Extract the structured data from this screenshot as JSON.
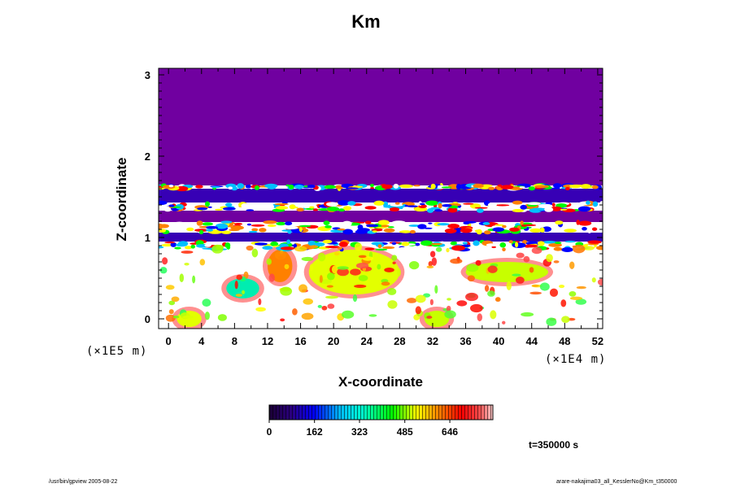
{
  "title": "Km",
  "footer": {
    "left": "/usr/bin/gpview 2005-08-22",
    "right": "arare-nakajima03_all_KesslerNo@Km_t350000"
  },
  "time_label": "t=350000 s",
  "chart_data": {
    "type": "heatmap",
    "title": "Km",
    "xlabel": "X-coordinate",
    "ylabel": "Z-coordinate",
    "x_scale_label": "(×1E4 m)",
    "y_scale_label": "(×1E5 m)",
    "xlim": [
      -1.2,
      52.6
    ],
    "ylim": [
      -0.12,
      3.08
    ],
    "x_ticks": [
      "0",
      "4",
      "8",
      "12",
      "16",
      "20",
      "24",
      "28",
      "32",
      "36",
      "40",
      "44",
      "48",
      "52"
    ],
    "y_ticks": [
      "0",
      "1",
      "2",
      "3"
    ],
    "grid": false,
    "colorbar": {
      "min": 0,
      "max": 800,
      "tick_values": [
        0,
        162,
        323,
        485,
        646
      ],
      "tick_labels": [
        "0",
        "162",
        "323",
        "485",
        "646"
      ]
    },
    "field_regions": [
      {
        "x": [
          -1.2,
          52.6
        ],
        "z": [
          1.64,
          3.08
        ],
        "value": 0,
        "shape": "rect"
      },
      {
        "x": [
          -1.2,
          52.6
        ],
        "z": [
          1.43,
          1.6
        ],
        "value": 40,
        "shape": "rect"
      },
      {
        "x": [
          -1.2,
          52.6
        ],
        "z": [
          1.19,
          1.33
        ],
        "value": 0,
        "shape": "rect"
      },
      {
        "x": [
          -1.2,
          52.6
        ],
        "z": [
          0.95,
          1.06
        ],
        "value": 40,
        "shape": "rect"
      },
      {
        "x": [
          22,
          26
        ],
        "z": [
          0.35,
          0.8
        ],
        "value": 620,
        "shape": "ellipse"
      },
      {
        "x": [
          17,
          28
        ],
        "z": [
          0.3,
          0.85
        ],
        "value": 500,
        "shape": "ellipse"
      },
      {
        "x": [
          36,
          46
        ],
        "z": [
          0.45,
          0.7
        ],
        "value": 480,
        "shape": "ellipse"
      },
      {
        "x": [
          7,
          11
        ],
        "z": [
          0.25,
          0.5
        ],
        "value": 300,
        "shape": "ellipse"
      },
      {
        "x": [
          12,
          15
        ],
        "z": [
          0.45,
          0.85
        ],
        "value": 600,
        "shape": "ellipse"
      },
      {
        "x": [
          1,
          4
        ],
        "z": [
          -0.1,
          0.1
        ],
        "value": 500,
        "shape": "ellipse"
      },
      {
        "x": [
          31,
          34
        ],
        "z": [
          -0.1,
          0.1
        ],
        "value": 480,
        "shape": "ellipse"
      }
    ]
  }
}
